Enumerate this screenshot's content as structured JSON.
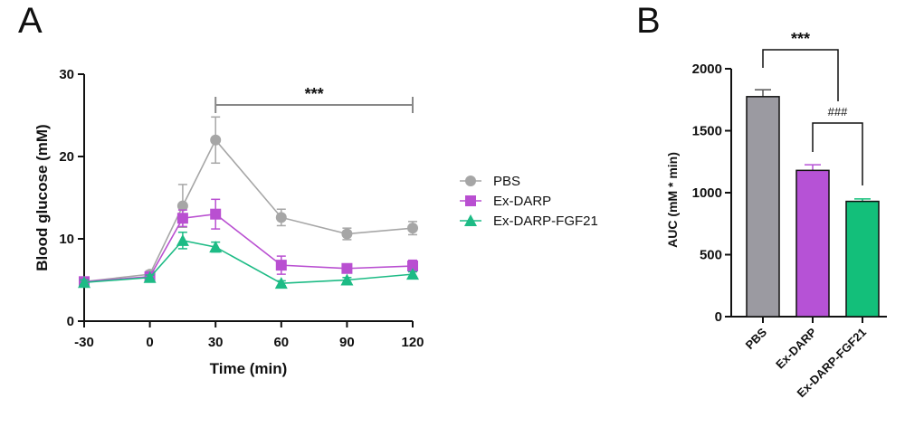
{
  "panel_a_label": "A",
  "panel_b_label": "B",
  "chart_data": [
    {
      "type": "line",
      "xlabel": "Time (min)",
      "ylabel": "Blood glucose (mM)",
      "xlim": [
        -30,
        120
      ],
      "ylim": [
        0,
        30
      ],
      "xticks": [
        -30,
        0,
        30,
        60,
        90,
        120
      ],
      "yticks": [
        0,
        10,
        20,
        30
      ],
      "legend_position": "right",
      "significance": {
        "label": "***",
        "x_from": 30,
        "x_to": 120
      },
      "series": [
        {
          "name": "PBS",
          "color": "#a6a6a6",
          "marker": "circle",
          "x": [
            -30,
            0,
            15,
            30,
            60,
            90,
            120
          ],
          "y": [
            4.8,
            5.7,
            14.0,
            22.0,
            12.6,
            10.6,
            11.3
          ],
          "err": [
            0.4,
            0.4,
            2.6,
            2.8,
            1.0,
            0.7,
            0.8
          ]
        },
        {
          "name": "Ex-DARP",
          "color": "#b94fd1",
          "marker": "square",
          "x": [
            -30,
            0,
            15,
            30,
            60,
            90,
            120
          ],
          "y": [
            4.8,
            5.4,
            12.5,
            13.0,
            6.8,
            6.4,
            6.7
          ],
          "err": [
            0.4,
            0.4,
            1.0,
            1.8,
            1.1,
            0.5,
            0.7
          ]
        },
        {
          "name": "Ex-DARP-FGF21",
          "color": "#1dbb85",
          "marker": "triangle",
          "x": [
            -30,
            0,
            15,
            30,
            60,
            90,
            120
          ],
          "y": [
            4.7,
            5.3,
            9.8,
            9.0,
            4.6,
            5.0,
            5.7
          ],
          "err": [
            0.3,
            0.3,
            1.0,
            0.6,
            0.3,
            0.3,
            0.3
          ]
        }
      ]
    },
    {
      "type": "bar",
      "ylabel": "AUC (mM * min)",
      "ylim": [
        0,
        2000
      ],
      "yticks": [
        0,
        500,
        1000,
        1500,
        2000
      ],
      "categories": [
        "PBS",
        "Ex-DARP",
        "Ex-DARP-FGF21"
      ],
      "values": [
        1775,
        1180,
        930
      ],
      "err": [
        55,
        45,
        20
      ],
      "colors": [
        "#9b9aa1",
        "#b652d6",
        "#13bf7a"
      ],
      "error_colors": [
        "#555555",
        "#b652d6",
        "#13bf7a"
      ],
      "significance": [
        {
          "label": "***",
          "from": 0,
          "to": 1
        },
        {
          "label": "###",
          "from": 1,
          "to": 2
        }
      ]
    }
  ]
}
